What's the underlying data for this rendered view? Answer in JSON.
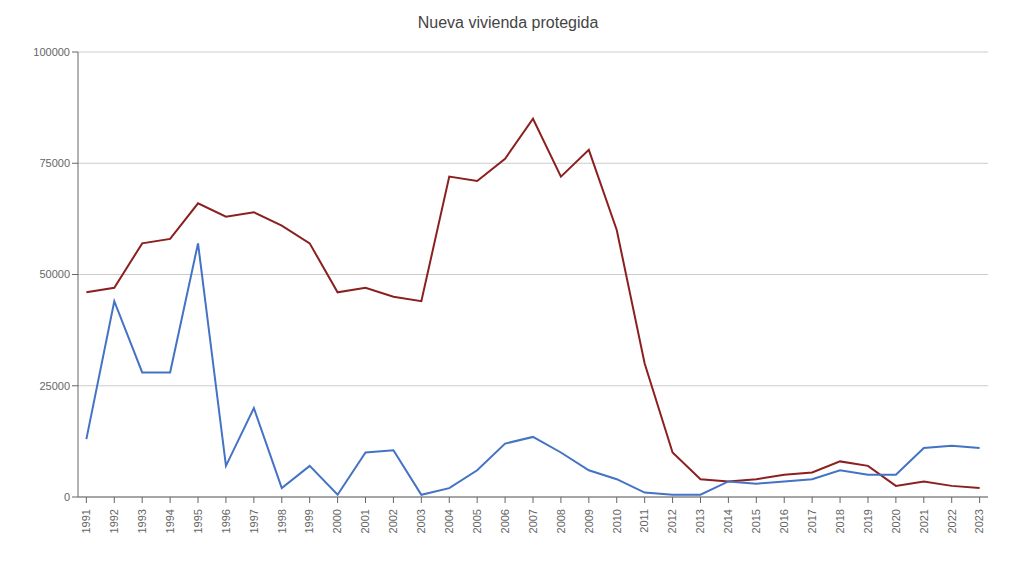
{
  "chart_data": {
    "type": "line",
    "title": "Nueva vivienda protegida",
    "x": [
      1991,
      1992,
      1993,
      1994,
      1995,
      1996,
      1997,
      1998,
      1999,
      2000,
      2001,
      2002,
      2003,
      2004,
      2005,
      2006,
      2007,
      2008,
      2009,
      2010,
      2011,
      2012,
      2013,
      2014,
      2015,
      2016,
      2017,
      2018,
      2019,
      2020,
      2021,
      2022,
      2023
    ],
    "series": [
      {
        "color": "#8B2020",
        "values": [
          46000,
          47000,
          57000,
          58000,
          66000,
          63000,
          64000,
          61000,
          57000,
          46000,
          47000,
          45000,
          44000,
          72000,
          71000,
          76000,
          85000,
          72000,
          78000,
          60000,
          30000,
          10000,
          4000,
          3500,
          4000,
          5000,
          5500,
          8000,
          7000,
          2500,
          3500,
          2500,
          2000
        ]
      },
      {
        "color": "#4472C4",
        "values": [
          13000,
          44000,
          28000,
          28000,
          57000,
          7000,
          20000,
          2000,
          7000,
          500,
          10000,
          10500,
          500,
          2000,
          6000,
          12000,
          13500,
          10000,
          6000,
          4000,
          1000,
          500,
          500,
          3500,
          3000,
          3500,
          4000,
          6000,
          5000,
          5000,
          11000,
          11500,
          11000
        ]
      }
    ],
    "xlim": [
      1990.7,
      2023.3
    ],
    "xticks": [
      1991,
      1992,
      1993,
      1994,
      1995,
      1996,
      1997,
      1998,
      1999,
      2000,
      2001,
      2002,
      2003,
      2004,
      2005,
      2006,
      2007,
      2008,
      2009,
      2010,
      2011,
      2012,
      2013,
      2014,
      2015,
      2016,
      2017,
      2018,
      2019,
      2020,
      2021,
      2022,
      2023
    ],
    "ylim": [
      0,
      100000
    ],
    "yticks": [
      0,
      25000,
      50000,
      75000,
      100000
    ],
    "grid": true
  }
}
